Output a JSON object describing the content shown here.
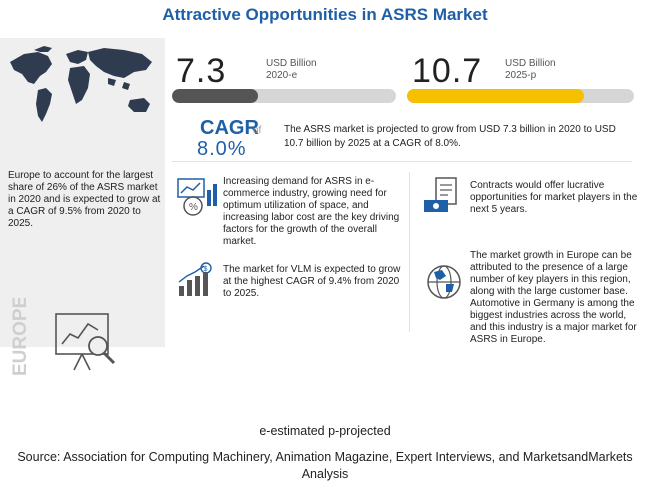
{
  "title": "Attractive Opportunities in ASRS Market",
  "left_panel": {
    "region_text": "Europe to account for the largest share of 26% of the ASRS market in 2020 and is expected to grow at a CAGR of 9.5% from 2020 to 2025.",
    "region_label": "EUROPE",
    "map_icon": "world-map-icon",
    "analytics_icon": "analytics-magnifier-icon"
  },
  "chart_data": {
    "type": "bar",
    "categories": [
      "2020-e",
      "2025-p"
    ],
    "values": [
      7.3,
      10.7
    ],
    "value_labels": [
      "7.3",
      "10.7"
    ],
    "unit": "USD Billion",
    "colors": [
      "#555555",
      "#f5c000"
    ],
    "track_color": "#d6d6d6",
    "max": 10.7
  },
  "cagr": {
    "label": "CAGR",
    "of_text": "of",
    "value": "8.0%",
    "description": "The ASRS market is projected to grow from USD 7.3 billion in 2020 to USD 10.7 billion by 2025 at a CAGR of 8.0%."
  },
  "bullets": [
    {
      "icon": "demand-chart-icon",
      "text": "Increasing demand for ASRS in e-commerce industry, growing need for optimum utilization of space, and increasing labor cost are the key driving factors for the growth of the overall market."
    },
    {
      "icon": "growth-bars-icon",
      "text": "The market for VLM is expected to grow at the highest CAGR of 9.4% from 2020 to 2025."
    },
    {
      "icon": "contract-money-icon",
      "text": "Contracts would offer lucrative opportunities for market players in the next 5 years."
    },
    {
      "icon": "globe-icon",
      "text": "The market growth in Europe can be attributed to the presence of a large number of key players in this region, along with the large customer base. Automotive in Germany is among the biggest industries across the world, and this industry is a major market for ASRS in Europe."
    }
  ],
  "footer": {
    "note": "e-estimated p-projected",
    "source": "Source: Association for Computing Machinery, Animation Magazine, Expert Interviews, and MarketsandMarkets Analysis"
  }
}
